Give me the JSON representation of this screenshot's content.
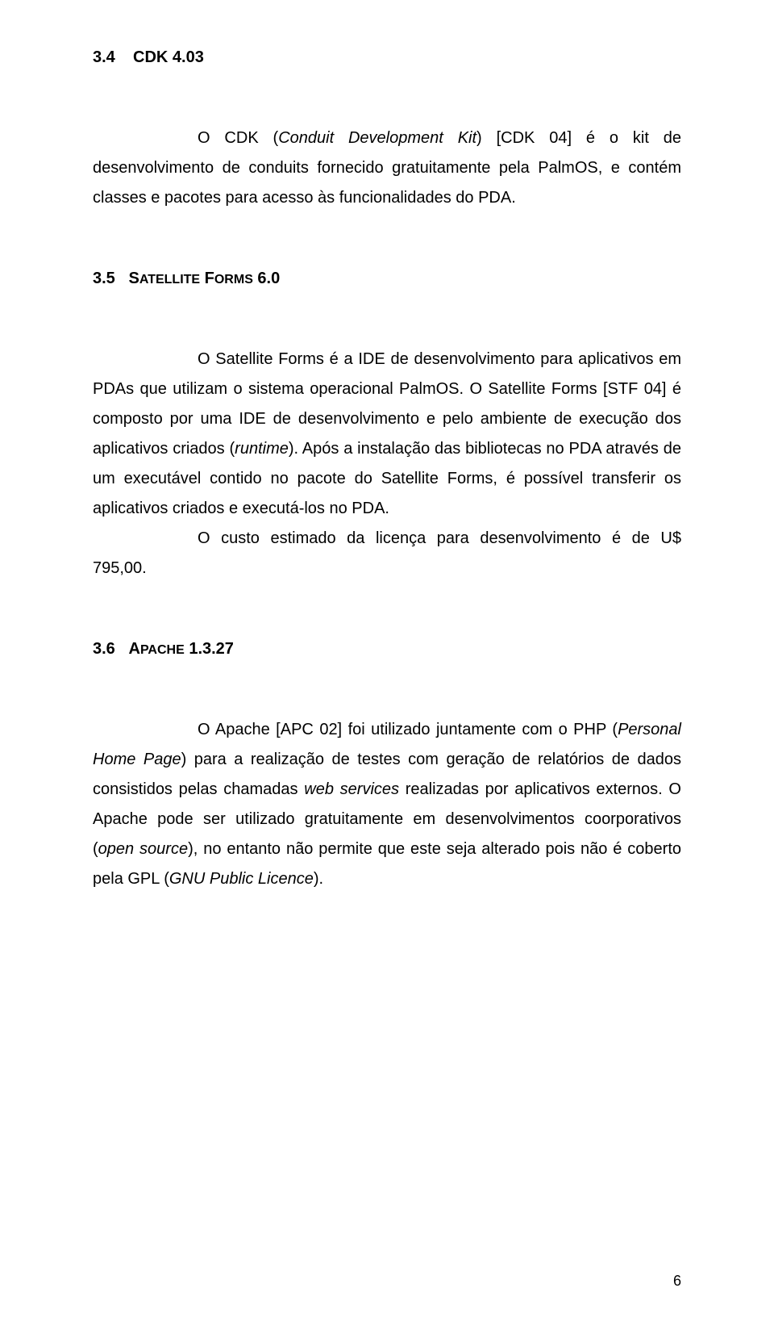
{
  "sec34": {
    "heading_num": "3.4",
    "heading_text": "CDK 4.03",
    "paragraph": "O CDK (Conduit Development Kit) [CDK 04] é o kit de desenvolvimento de conduits fornecido gratuitamente pela PalmOS, e contém classes e pacotes para acesso às funcionalidades do PDA."
  },
  "sec35": {
    "heading_num": "3.5",
    "heading_prefix": "S",
    "heading_small": "atellite ",
    "heading_prefix2": "F",
    "heading_small2": "orms ",
    "heading_ver": "6.0",
    "p1": "O Satellite Forms é a IDE de desenvolvimento para aplicativos em PDAs que utilizam o sistema operacional PalmOS. O Satellite Forms [STF 04] é composto por uma IDE de desenvolvimento e pelo ambiente de execução dos aplicativos criados (runtime). Após a instalação das bibliotecas no PDA através de um executável contido no pacote do Satellite Forms, é possível transferir os aplicativos criados e executá-los no PDA.",
    "p2": "O custo estimado da licença para desenvolvimento é de U$ 795,00."
  },
  "sec36": {
    "heading_num": "3.6",
    "heading_prefix": "A",
    "heading_small": "pache ",
    "heading_ver": "1.3.27",
    "p1": "O Apache [APC 02] foi utilizado juntamente com o PHP (Personal Home Page) para a realização de testes com geração de relatórios de dados consistidos pelas chamadas web services realizadas por aplicativos externos. O Apache pode ser utilizado gratuitamente em desenvolvimentos coorporativos (open source), no entanto não permite que este seja alterado pois não é coberto pela GPL (GNU Public Licence)."
  },
  "page_number": "6"
}
